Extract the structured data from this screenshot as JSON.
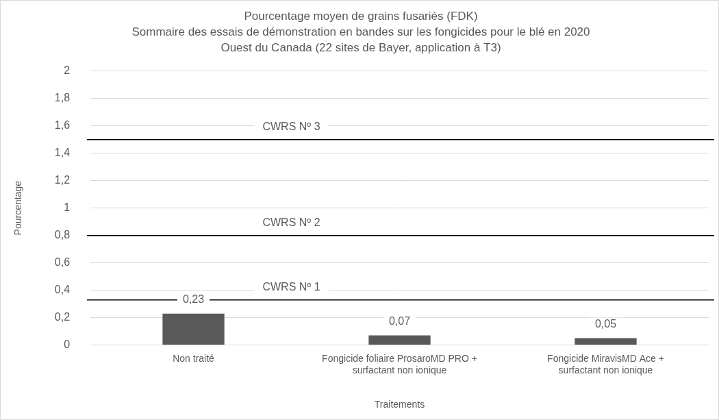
{
  "chart_data": {
    "type": "bar",
    "title": [
      "Pourcentage moyen de grains fusariés (FDK)",
      "Sommaire des essais de démonstration en bandes sur les fongicides pour le blé en 2020",
      "Ouest du Canada (22 sites de Bayer, application à T3)"
    ],
    "x_label": "Traitements",
    "y_label": "Pourcentage",
    "categories": [
      "Non traité",
      [
        "Fongicide foliaire ProsaroMD PRO +",
        "surfactant non ionique"
      ],
      [
        "Fongicide MiravisMD Ace +",
        "surfactant non ionique"
      ]
    ],
    "values": [
      0.23,
      0.07,
      0.05
    ],
    "value_labels": [
      "0,23",
      "0,07",
      "0,05"
    ],
    "color": "#595959",
    "ylim": [
      0,
      2
    ],
    "yticks": [
      0,
      {
        "value": 0.2,
        "label": "0,2"
      },
      {
        "value": 0.4,
        "label": "0,4"
      },
      {
        "value": 0.6,
        "label": "0,6"
      },
      {
        "value": 0.8,
        "label": "0,8"
      },
      1,
      {
        "value": 1.2,
        "label": "1,2"
      },
      {
        "value": 1.4,
        "label": "1,4"
      },
      {
        "value": 1.6,
        "label": "1,6"
      },
      {
        "value": 1.8,
        "label": "1,8"
      },
      2
    ],
    "grid": true,
    "data_labels": true,
    "thresholds": [
      {
        "value": 0.33,
        "label": "CWRS Nº 1"
      },
      {
        "value": 0.8,
        "label": "CWRS Nº 2"
      },
      {
        "value": 1.5,
        "label": "CWRS Nº 3"
      }
    ]
  }
}
